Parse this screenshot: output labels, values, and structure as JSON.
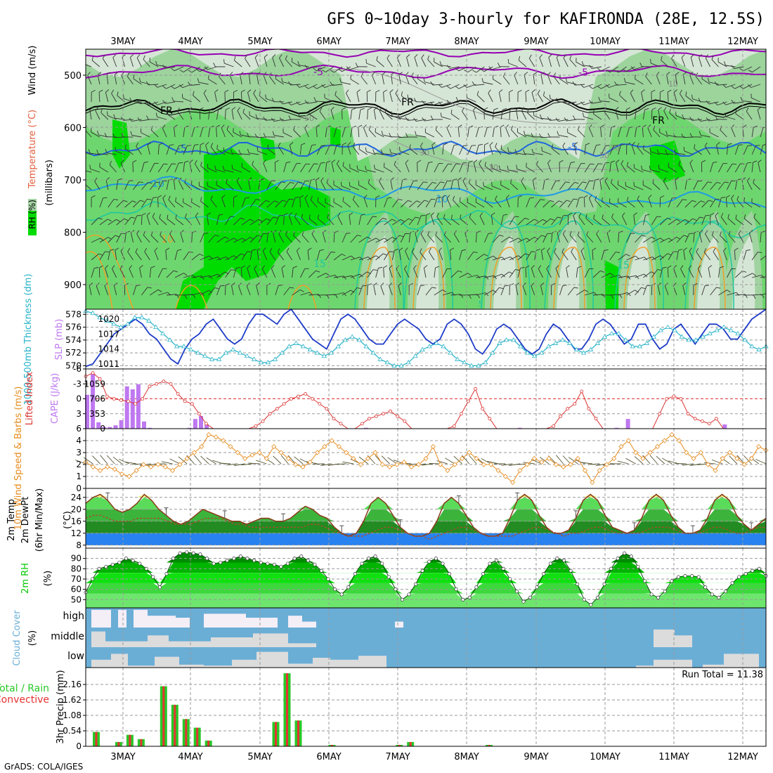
{
  "title": "GFS 0~10day 3-hourly for KAFIRONDA (28E, 12.5S)",
  "footer": "GrADS: COLA/IGES",
  "date_labels": [
    "3MAY",
    "4MAY",
    "5MAY",
    "6MAY",
    "7MAY",
    "8MAY",
    "9MAY",
    "10MAY",
    "11MAY",
    "12MAY"
  ],
  "colors": {
    "rh_dark": "#00dc00",
    "rh_mid": "#6ed66e",
    "rh_light": "#a5d3a5",
    "rh_pale": "#d6e6d6",
    "temp_purple": "#9600b4",
    "temp_blue": "#1e64dc",
    "temp_cyan": "#1e9be6",
    "temp_teal": "#1ec8a0",
    "temp_orange": "#f0a028",
    "slp": "#1e3cc8",
    "thick": "#28b4c8",
    "li": "#dc3232",
    "cape": "#be78f0",
    "wind": "#e68c1e",
    "blue_band": "#2882f0",
    "rh2m": "#00c800",
    "cloud": "#6aaed6",
    "cloud_gray": "#dcdcdc",
    "rain_green": "#28c828",
    "rain_red": "#e63232"
  },
  "chart_data": [
    {
      "type": "heatmap",
      "name": "upper",
      "ylabel_parts": [
        "RH (%)",
        "Temperature (°C)",
        "Wind (m/s)"
      ],
      "yunit": "(millibars)",
      "yticks": [
        500,
        600,
        700,
        800,
        900
      ],
      "contour_labels": [
        "-5",
        "-5",
        "FR",
        "FR",
        "FR",
        "-5",
        "-5",
        "10",
        "10",
        "10",
        "15",
        "15",
        "50",
        "50",
        "30",
        "30",
        "10",
        "10",
        "5"
      ]
    },
    {
      "type": "line",
      "name": "slp_thickness",
      "ylabel_left": "1000-500mb Thickness (dm)",
      "ylabel_right": "SLP (mb)",
      "left_ticks": [
        570,
        572,
        574,
        576,
        578
      ],
      "right_ticks": [
        1011,
        1014,
        1017,
        1020
      ],
      "left_range": [
        569.5,
        578.8
      ],
      "right_range": [
        1010,
        1022
      ],
      "series": [
        {
          "name": "SLP (mb)",
          "values": [
            1010.5,
            1011,
            1013,
            1015,
            1017,
            1018,
            1019,
            1020,
            1019,
            1017,
            1016,
            1014,
            1012,
            1011,
            1014,
            1016,
            1017,
            1019,
            1020,
            1018,
            1016,
            1015,
            1016,
            1019,
            1021,
            1021,
            1020,
            1019,
            1021,
            1022,
            1020,
            1018,
            1016,
            1015,
            1014,
            1017,
            1020,
            1021,
            1020,
            1018,
            1016,
            1015,
            1015,
            1017,
            1019,
            1020,
            1019,
            1018,
            1016,
            1015,
            1016,
            1019,
            1020,
            1019,
            1017,
            1014,
            1013,
            1015,
            1018,
            1019,
            1018,
            1016,
            1014,
            1013,
            1014,
            1017,
            1019,
            1018,
            1016,
            1014,
            1014,
            1016,
            1019,
            1020,
            1019,
            1017,
            1015,
            1016,
            1019,
            1019,
            1016,
            1014,
            1015,
            1018,
            1019,
            1017,
            1015,
            1017,
            1019,
            1019,
            1018,
            1016,
            1016,
            1018,
            1020,
            1021,
            1022
          ]
        },
        {
          "name": "1000-500mb Thickness (dm)",
          "values": [
            578.5,
            578.2,
            577.5,
            577,
            576.5,
            576,
            576.5,
            577.5,
            577.5,
            577,
            576,
            575,
            574,
            573,
            573,
            572.5,
            572,
            571.5,
            571,
            571,
            572,
            572.5,
            572,
            571.5,
            571,
            570.5,
            570.5,
            571,
            572,
            573,
            573.5,
            573,
            572.5,
            572,
            571.5,
            572,
            573,
            574,
            574.5,
            574,
            573,
            572,
            571,
            570.5,
            570,
            570,
            570.5,
            571.5,
            572.5,
            573,
            573.5,
            573,
            572,
            571,
            570.5,
            570,
            570,
            570.5,
            572,
            573.5,
            574,
            574,
            573,
            572,
            571.5,
            572,
            573,
            573.5,
            574,
            573.5,
            572.5,
            572,
            572.5,
            573.5,
            574.5,
            575,
            575,
            574,
            573,
            573,
            573.5,
            574.5,
            575.5,
            576,
            575.5,
            574.5,
            574,
            574,
            574.5,
            575,
            575.5,
            576,
            575.5,
            575,
            574,
            573,
            572.5,
            573
          ]
        }
      ]
    },
    {
      "type": "bar",
      "name": "li_cape",
      "ylabel_left": "Lifted Index",
      "ylabel_right": "CAPE (J/kg)",
      "left_ticks": [
        -6,
        -3,
        0,
        3,
        6
      ],
      "right_ticks": [
        0,
        353,
        706,
        1059
      ],
      "left_range": [
        6,
        -6
      ],
      "right_range": [
        0,
        1412
      ],
      "series": [
        {
          "name": "Lifted Index",
          "values": [
            -4.5,
            -5.2,
            -4,
            -0.5,
            0,
            0.3,
            0.5,
            1,
            0,
            -2.5,
            -3,
            -3.5,
            -3,
            -1,
            0.5,
            1,
            3,
            5,
            6,
            6,
            6,
            6,
            6,
            6,
            5.5,
            4.5,
            3,
            2,
            1,
            0,
            -0.5,
            -1,
            0,
            1,
            2,
            4,
            5,
            6,
            6,
            5,
            4,
            3.5,
            3,
            2.5,
            3.5,
            4.5,
            6,
            6,
            6,
            6,
            6,
            6,
            5.5,
            3,
            0.5,
            -2,
            2,
            4,
            6,
            6,
            6,
            6,
            6,
            6,
            6,
            6,
            5.5,
            3.5,
            2,
            1,
            -1.5,
            2,
            4,
            6,
            6,
            6,
            6,
            6,
            6,
            6,
            6,
            3,
            0,
            -0.5,
            0,
            3,
            4,
            4.5,
            5,
            4,
            6,
            6,
            6,
            6,
            6,
            6,
            6
          ]
        },
        {
          "name": "CAPE (J/kg)",
          "values": [
            800,
            1300,
            150,
            40,
            40,
            80,
            200,
            1000,
            930,
            1050,
            170,
            20,
            0,
            0,
            0,
            0,
            0,
            0,
            20,
            230,
            300,
            100,
            0,
            0,
            0,
            0,
            0,
            0,
            0,
            0,
            0,
            0,
            0,
            0,
            0,
            0,
            0,
            0,
            0,
            0,
            0,
            0,
            0,
            0,
            0,
            0,
            0,
            0,
            0,
            20,
            0,
            0,
            0,
            0,
            0,
            0,
            0,
            0,
            0,
            0,
            0,
            0,
            0,
            0,
            0,
            0,
            0,
            0,
            0,
            0,
            0,
            0,
            0,
            0,
            0,
            0,
            20,
            0,
            0,
            0,
            0,
            0,
            0,
            0,
            0,
            0,
            0,
            0,
            0,
            0,
            0,
            0,
            0,
            20,
            0,
            230,
            0,
            0,
            0,
            0,
            0,
            0,
            0,
            0,
            0,
            0,
            0,
            0,
            0,
            0,
            0,
            0,
            100,
            0,
            0,
            0,
            0,
            0,
            0,
            0
          ]
        }
      ]
    },
    {
      "type": "line",
      "name": "wind10m",
      "ylabel": "10m Wind Speed & Barbs (m/s)",
      "yticks": [
        0,
        1,
        2,
        3,
        4
      ],
      "ylim": [
        0,
        5
      ],
      "series": [
        {
          "name": "10m Wind Speed",
          "values": [
            2.2,
            1.8,
            1.5,
            1.8,
            1.6,
            1.2,
            1.0,
            1.5,
            2.0,
            1.8,
            2.0,
            1.8,
            1.5,
            2.0,
            2.5,
            3.0,
            3.5,
            4.5,
            4.3,
            4.0,
            3.5,
            3.0,
            2.5,
            2.8,
            3.0,
            2.5,
            3.5,
            3.0,
            2.5,
            2.0,
            1.8,
            2.2,
            3.0,
            3.5,
            4.0,
            3.5,
            3.0,
            2.5,
            2.0,
            2.5,
            3.0,
            2.0,
            1.8,
            2.0,
            2.2,
            1.8,
            2.0,
            2.5,
            3.5,
            2.0,
            1.5,
            2.0,
            2.5,
            3.0,
            2.5,
            2.0,
            2.0,
            1.5,
            1.0,
            0.5,
            1.5,
            2.0,
            2.5,
            2.2,
            2.5,
            2.0,
            1.8,
            2.0,
            2.5,
            1.5,
            0.5,
            1.5,
            2.0,
            2.5,
            3.5,
            4.0,
            3.0,
            2.5,
            3.0,
            3.5,
            4.0,
            4.5,
            4.0,
            3.0,
            2.5,
            3.0,
            2.0,
            1.5,
            2.5,
            3.0,
            2.5,
            2.0,
            2.5,
            3.5,
            3.2
          ]
        }
      ]
    },
    {
      "type": "area",
      "name": "temp2m",
      "ylabel": "2m Temp 2m DewPt (6hr Min/Max) (°C)",
      "yticks": [
        8,
        12,
        16,
        20,
        24
      ],
      "ylim": [
        7,
        27
      ],
      "series": [
        {
          "name": "2m Temp",
          "values": [
            22,
            24,
            25,
            23,
            20,
            19,
            20,
            22,
            25,
            23,
            20,
            18,
            16,
            15,
            16,
            18,
            20,
            19,
            18,
            17,
            16,
            16,
            15,
            16,
            17,
            17,
            16,
            16,
            17,
            19,
            21,
            20,
            18,
            17,
            14,
            12,
            11,
            12,
            16,
            22,
            24,
            22,
            18,
            14,
            12,
            11,
            11,
            12,
            16,
            22,
            24,
            22,
            18,
            14,
            12,
            11,
            11,
            12,
            17,
            23,
            25,
            23,
            18,
            14,
            12,
            12,
            13,
            17,
            23,
            25,
            23,
            18,
            14,
            13,
            12,
            13,
            17,
            23,
            25,
            23,
            18,
            14,
            12,
            12,
            13,
            17,
            23,
            25,
            23,
            18,
            15,
            13,
            15,
            17
          ]
        },
        {
          "name": "2m DewPt",
          "values": [
            17,
            18,
            18,
            17,
            16,
            16,
            16,
            17,
            17,
            17,
            17,
            16,
            15,
            15,
            15,
            16,
            17,
            17,
            17,
            16,
            15,
            15,
            14,
            14,
            14,
            14,
            14,
            14,
            14,
            14,
            15,
            15,
            14,
            13,
            12,
            11,
            11,
            11,
            12,
            13,
            14,
            14,
            13,
            12,
            11,
            11,
            10,
            11,
            12,
            13,
            14,
            14,
            13,
            12,
            11,
            11,
            11,
            11,
            12,
            13,
            14,
            14,
            13,
            12,
            11,
            12,
            12,
            13,
            14,
            14,
            13,
            12,
            12,
            12,
            12,
            13,
            14,
            14,
            14,
            13,
            12,
            12,
            12,
            13,
            14,
            14,
            13,
            12,
            12,
            13,
            14,
            14
          ]
        }
      ]
    },
    {
      "type": "area",
      "name": "rh2m",
      "ylabel": "2m RH (%)",
      "yticks": [
        50,
        60,
        70,
        80,
        90
      ],
      "ylim": [
        42,
        100
      ],
      "series": [
        {
          "name": "2m RH",
          "values": [
            57,
            70,
            80,
            82,
            84,
            86,
            90,
            88,
            85,
            80,
            72,
            62,
            75,
            90,
            95,
            96,
            95,
            94,
            90,
            85,
            86,
            88,
            90,
            92,
            90,
            88,
            86,
            85,
            84,
            82,
            85,
            90,
            92,
            88,
            84,
            78,
            70,
            60,
            55,
            62,
            75,
            85,
            90,
            92,
            85,
            72,
            60,
            50,
            55,
            65,
            78,
            87,
            90,
            85,
            75,
            60,
            50,
            52,
            62,
            75,
            85,
            88,
            80,
            70,
            58,
            48,
            52,
            62,
            75,
            85,
            90,
            88,
            78,
            65,
            50,
            45,
            52,
            65,
            80,
            90,
            95,
            92,
            82,
            68,
            55,
            52,
            58,
            68,
            72,
            73,
            73,
            72,
            62,
            55,
            52,
            58,
            66,
            72,
            75,
            78,
            80,
            73
          ]
        }
      ]
    },
    {
      "type": "area",
      "name": "cloud",
      "ylabel": "Cloud Cover (%)",
      "level_labels": [
        "high",
        "middle",
        "low"
      ]
    },
    {
      "type": "bar",
      "name": "precip",
      "ylabel": "3hr Precip (mm)",
      "legend": [
        "Total / Rain",
        "Convective"
      ],
      "yticks": [
        0,
        0.54,
        1.08,
        1.62,
        2.16
      ],
      "ylim": [
        0,
        2.75
      ],
      "run_total_label": "Run Total = 11.38",
      "series": [
        {
          "name": "Total / Rain",
          "values": [
            0.5,
            0,
            0.15,
            0.4,
            0.25,
            0,
            2.1,
            1.45,
            0.95,
            0.65,
            0.2,
            0,
            0,
            0,
            0,
            0,
            0.85,
            2.55,
            0.9,
            0,
            0,
            0.05,
            0,
            0,
            0,
            0,
            0,
            0.05,
            0.15,
            0,
            0,
            0,
            0,
            0,
            0,
            0.05,
            0,
            0,
            0,
            0,
            0,
            0,
            0,
            0,
            0,
            0,
            0,
            0,
            0,
            0,
            0,
            0,
            0,
            0,
            0,
            0,
            0,
            0,
            0,
            0,
            0,
            0,
            0,
            0,
            0,
            0,
            0,
            0,
            0,
            0,
            0,
            0,
            0,
            0,
            0,
            0,
            0,
            0,
            0,
            0,
            0,
            0,
            0,
            0,
            0,
            0,
            0,
            0,
            0,
            0,
            0,
            0,
            0
          ]
        }
      ]
    }
  ]
}
